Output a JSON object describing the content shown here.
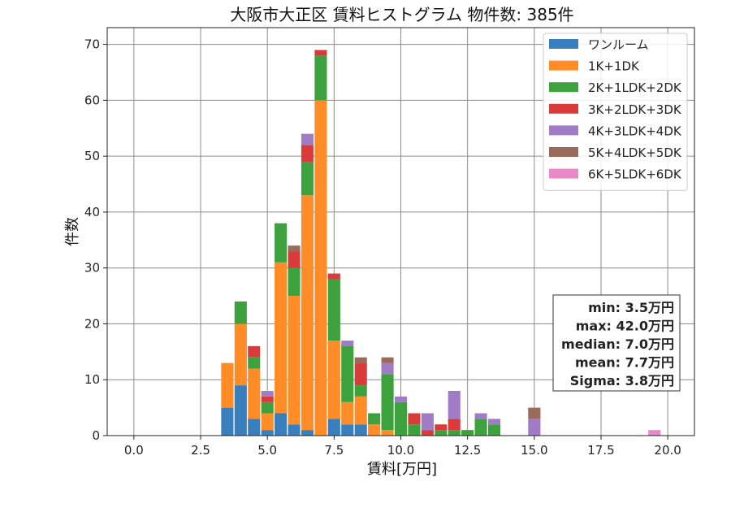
{
  "chart_data": {
    "type": "bar",
    "stacked": true,
    "title": "大阪市大正区 賃料ヒストグラム 物件数: 385件",
    "xlabel": "賃料[万円]",
    "ylabel": "件数",
    "xlim": [
      -1,
      21
    ],
    "ylim": [
      0,
      73
    ],
    "xticks": [
      "0.0",
      "2.5",
      "5.0",
      "7.5",
      "10.0",
      "12.5",
      "15.0",
      "17.5",
      "20.0"
    ],
    "yticks": [
      "0",
      "10",
      "20",
      "30",
      "40",
      "50",
      "60",
      "70"
    ],
    "grid": true,
    "bin_width": 0.5,
    "x": [
      3.5,
      4.0,
      4.5,
      5.0,
      5.5,
      6.0,
      6.5,
      7.0,
      7.5,
      8.0,
      8.5,
      9.0,
      9.5,
      10.0,
      10.5,
      11.0,
      11.5,
      12.0,
      12.5,
      13.0,
      13.5,
      15.0,
      19.5
    ],
    "legend_position": "top-right",
    "series": [
      {
        "name": "ワンルーム",
        "color": "#3a7fbd",
        "values": [
          5,
          9,
          3,
          1,
          4,
          2,
          1,
          0,
          3,
          2,
          2,
          0,
          0,
          0,
          0,
          0,
          0,
          0,
          0,
          0,
          0,
          0,
          0
        ]
      },
      {
        "name": "1K+1DK",
        "color": "#ff8c26",
        "values": [
          8,
          11,
          9,
          3,
          27,
          23,
          42,
          60,
          14,
          4,
          5,
          2,
          1,
          0,
          0,
          0,
          0,
          0,
          0,
          0,
          0,
          0,
          0
        ]
      },
      {
        "name": "2K+1LDK+2DK",
        "color": "#3da23d",
        "values": [
          0,
          4,
          2,
          2,
          7,
          5,
          6,
          8,
          11,
          10,
          2,
          2,
          10,
          6,
          2,
          0,
          1,
          1,
          1,
          3,
          2,
          0,
          0
        ]
      },
      {
        "name": "3K+2LDK+3DK",
        "color": "#d93a3a",
        "values": [
          0,
          0,
          2,
          1,
          0,
          3,
          3,
          1,
          1,
          0,
          4,
          0,
          0,
          0,
          2,
          1,
          1,
          2,
          0,
          0,
          0,
          0,
          0
        ]
      },
      {
        "name": "4K+3LDK+4DK",
        "color": "#a07cc6",
        "values": [
          0,
          0,
          0,
          1,
          0,
          0,
          2,
          0,
          0,
          1,
          0,
          0,
          2,
          1,
          0,
          3,
          0,
          5,
          0,
          1,
          1,
          3,
          0
        ]
      },
      {
        "name": "5K+4LDK+5DK",
        "color": "#9a6a5a",
        "values": [
          0,
          0,
          0,
          0,
          0,
          1,
          0,
          0,
          0,
          0,
          1,
          0,
          1,
          0,
          0,
          0,
          0,
          0,
          0,
          0,
          0,
          2,
          0
        ]
      },
      {
        "name": "6K+5LDK+6DK",
        "color": "#e98ac8",
        "values": [
          0,
          0,
          0,
          0,
          0,
          0,
          0,
          0,
          0,
          0,
          0,
          0,
          0,
          0,
          0,
          0,
          0,
          0,
          0,
          0,
          0,
          0,
          1
        ]
      }
    ],
    "stats": [
      "min: 3.5万円",
      "max: 42.0万円",
      "median: 7.0万円",
      "mean: 7.7万円",
      "Sigma: 3.8万円"
    ]
  }
}
